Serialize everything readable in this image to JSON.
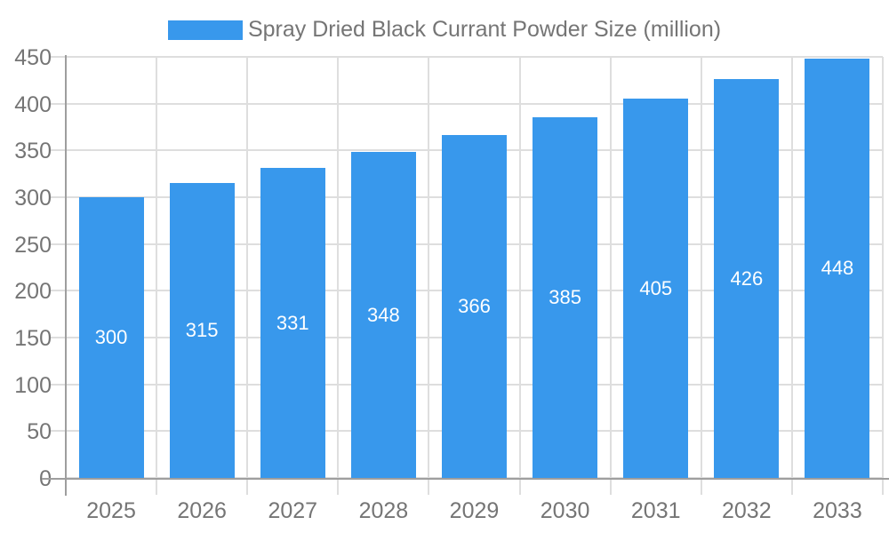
{
  "chart_data": {
    "type": "bar",
    "title": "Spray Dried Black Currant Powder Size (million)",
    "legend": {
      "label": "Spray Dried Black Currant Powder Size (million)",
      "position": "top-center"
    },
    "categories": [
      "2025",
      "2026",
      "2027",
      "2028",
      "2029",
      "2030",
      "2031",
      "2032",
      "2033"
    ],
    "values": [
      300,
      315,
      331,
      348,
      366,
      385,
      405,
      426,
      448
    ],
    "value_labels_shown": true,
    "xlabel": "",
    "ylabel": "",
    "y_axis": {
      "min": 0,
      "max": 450,
      "step": 50,
      "ticks": [
        0,
        50,
        100,
        150,
        200,
        250,
        300,
        350,
        400,
        450
      ]
    },
    "grid": true,
    "colors": {
      "bar": "#3898EC",
      "axis_line": "#9E9E9E",
      "gridline": "#DEDEDE",
      "tick_label": "#757575",
      "legend_label": "#757575",
      "value_label": "#FFFFFF",
      "background": "#FFFFFF"
    }
  }
}
